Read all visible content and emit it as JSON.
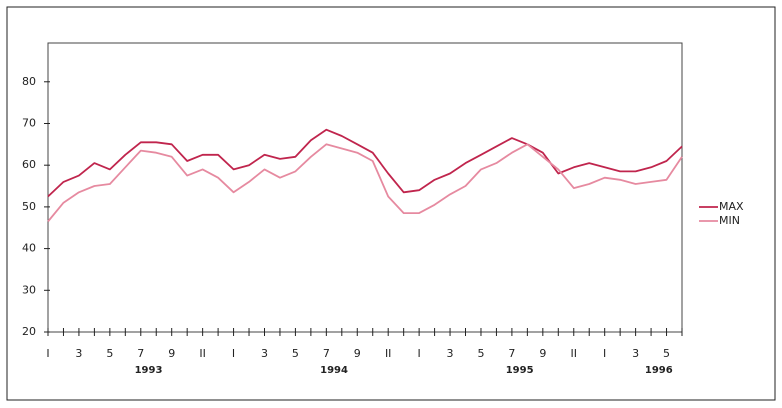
{
  "chart_data": {
    "type": "line",
    "categories": [
      "I",
      null,
      "3",
      null,
      "5",
      null,
      "7",
      null,
      "9",
      null,
      "II",
      null,
      "I",
      null,
      "3",
      null,
      "5",
      null,
      "7",
      null,
      "9",
      null,
      "II",
      null,
      "I",
      null,
      "3",
      null,
      "5",
      null,
      "7",
      null,
      "9",
      null,
      "II",
      null,
      "I",
      null,
      "3",
      null,
      "5",
      null
    ],
    "year_labels": [
      "1993",
      "1994",
      "1995",
      "1996"
    ],
    "series": [
      {
        "name": "MAX",
        "color": "#c0254d",
        "values": [
          52.5,
          56,
          57.5,
          60.5,
          59,
          62.5,
          65.5,
          65.5,
          65,
          61,
          62.5,
          62.5,
          59,
          60,
          62.5,
          61.5,
          62,
          66,
          68.5,
          67,
          65,
          63,
          58,
          53.5,
          54,
          56.5,
          58,
          60.5,
          62.5,
          64.5,
          66.5,
          65,
          63,
          58,
          59.5,
          60.5,
          59.5,
          58.5,
          58.5,
          59.5,
          61,
          64.5
        ]
      },
      {
        "name": "MIN",
        "color": "#e68aa0",
        "values": [
          46.5,
          51,
          53.5,
          55,
          55.5,
          59.5,
          63.5,
          63,
          62,
          57.5,
          59,
          57,
          53.5,
          56,
          59,
          57,
          58.5,
          62,
          65,
          64,
          63,
          61,
          52.5,
          48.5,
          48.5,
          50.5,
          53,
          55,
          59,
          60.5,
          63,
          65,
          62,
          59,
          54.5,
          55.5,
          57,
          56.5,
          55.5,
          56,
          56.5,
          62
        ]
      }
    ],
    "ylim": [
      20,
      89.3
    ],
    "yticks": [
      20,
      30,
      40,
      50,
      60,
      70,
      80
    ],
    "grid": false,
    "legend": "right"
  }
}
